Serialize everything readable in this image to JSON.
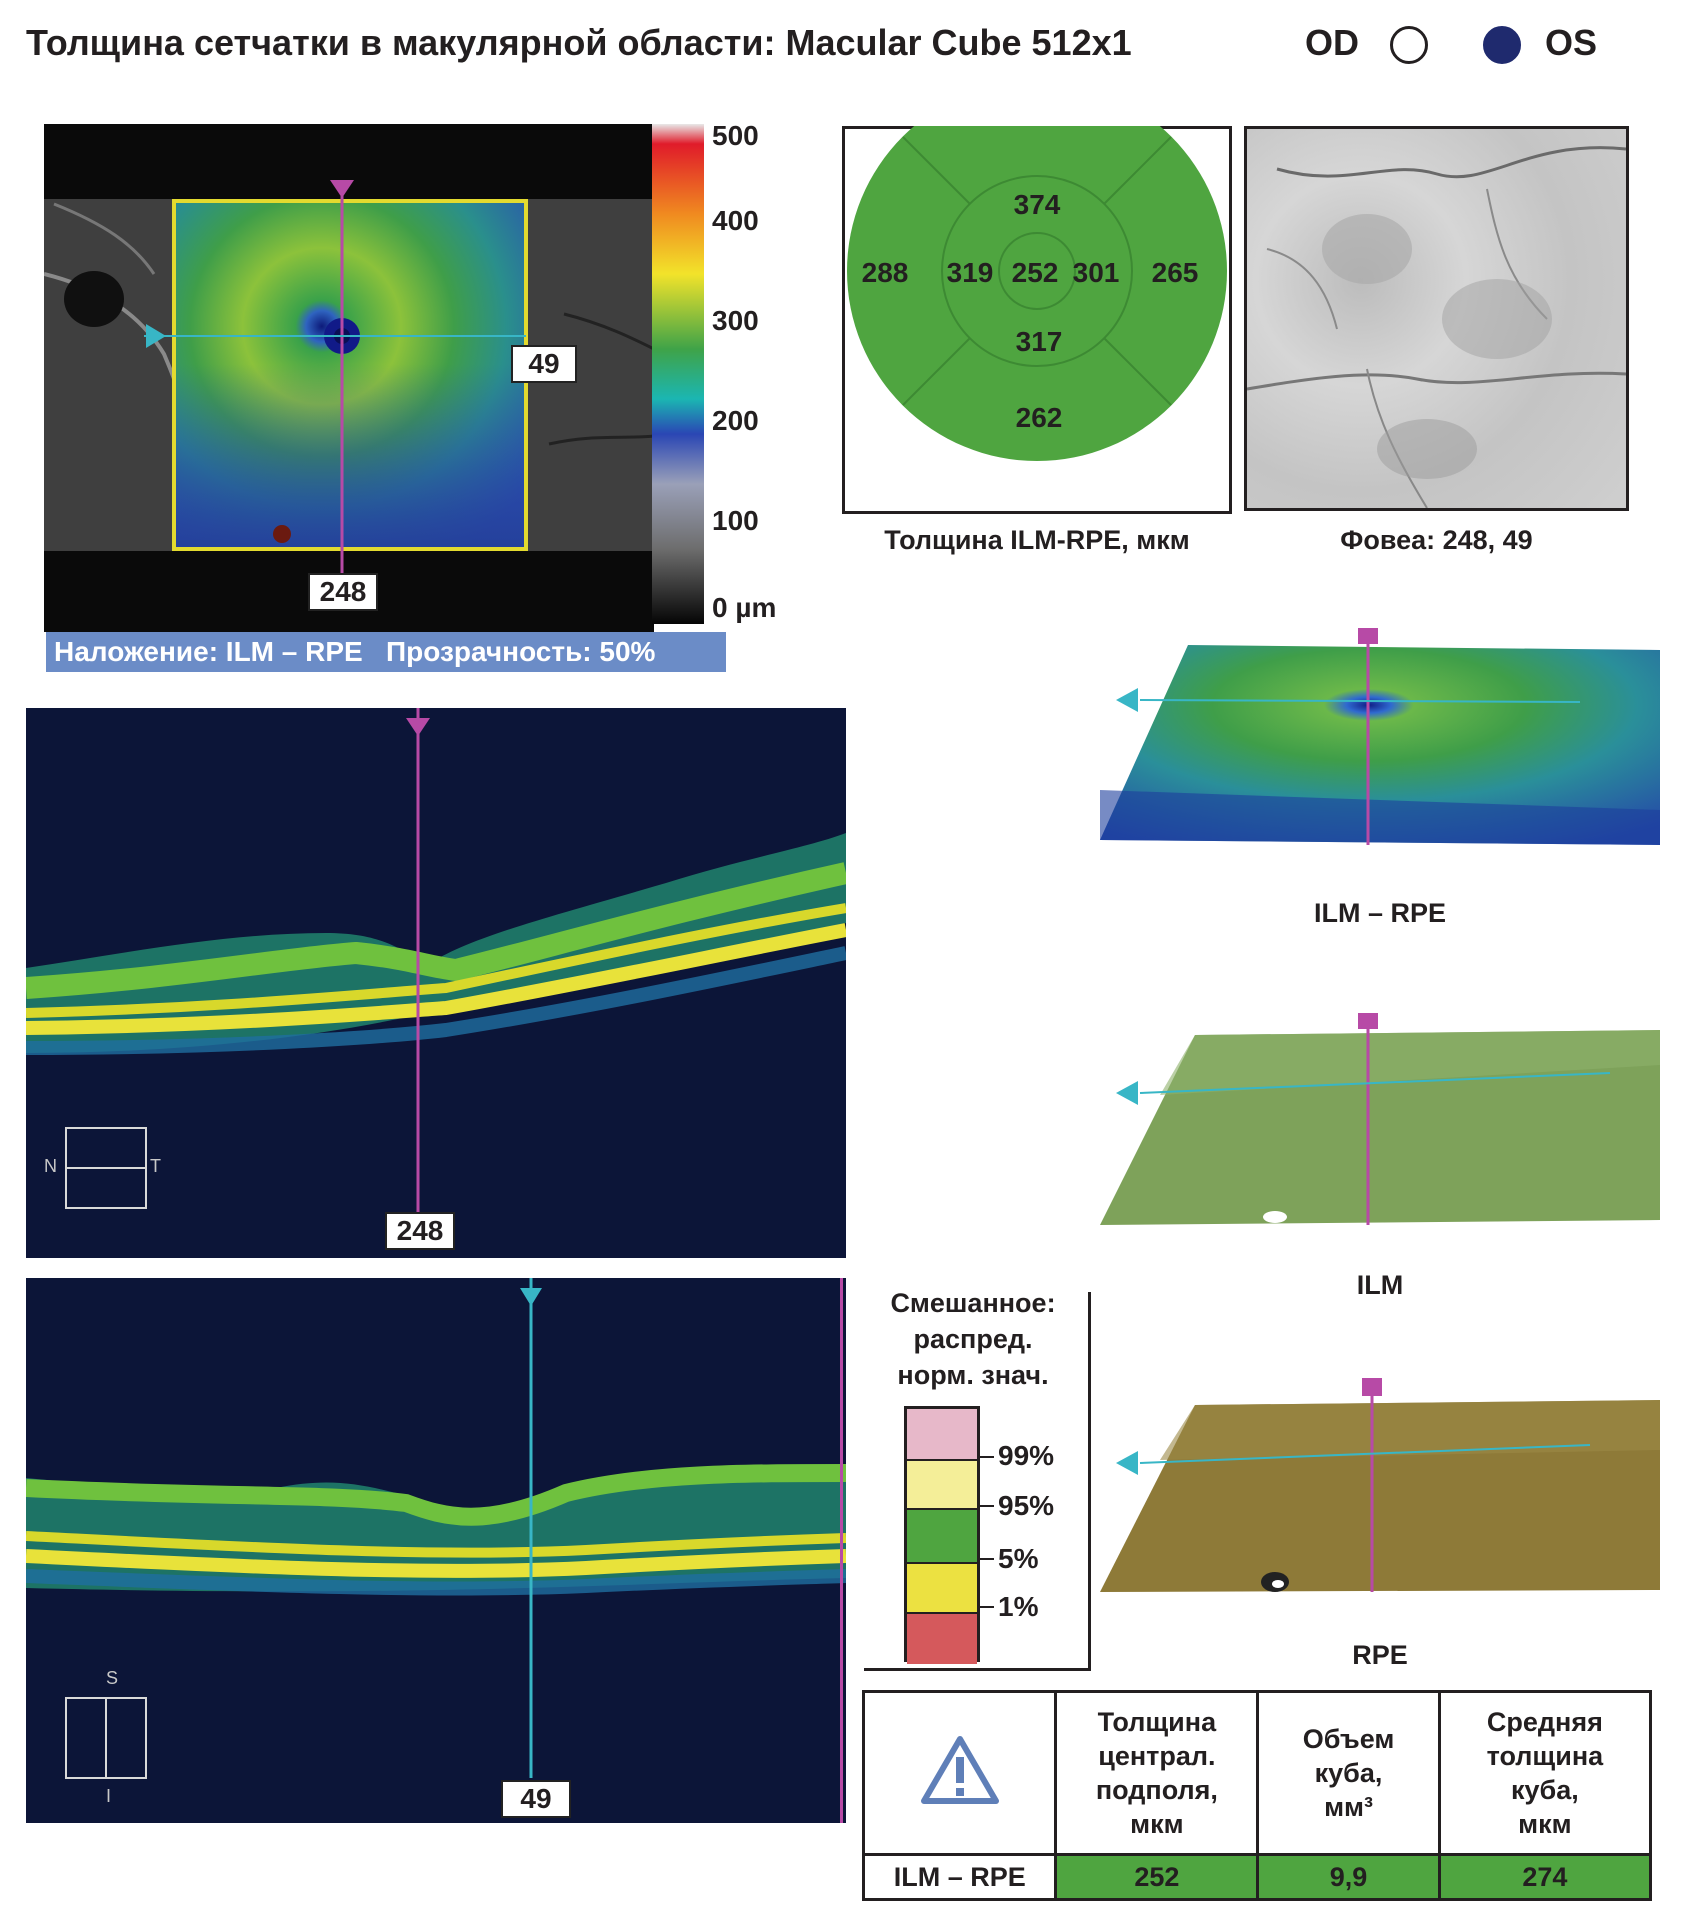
{
  "header": {
    "title": "Толщина сетчатки в макулярной области: Macular Cube 512x1",
    "od_label": "OD",
    "os_label": "OS"
  },
  "thickness_map": {
    "fovea_x": "248",
    "fovea_y": "49",
    "scale": [
      "500",
      "400",
      "300",
      "200",
      "100",
      "0 µm"
    ],
    "overlay_caption": "Наложение: ILM – RPE   Прозрачность: 50%"
  },
  "etdrs": {
    "superior_outer": "374",
    "nasal_outer": "288",
    "nasal_inner": "319",
    "center": "252",
    "temporal_inner": "301",
    "temporal_outer": "265",
    "inferior_inner": "317",
    "inferior_outer": "262",
    "caption": "Толщина ILM-RPE, мкм"
  },
  "fundus": {
    "caption": "Фовеа: 248, 49"
  },
  "bscans": {
    "horizontal_label": "248",
    "vertical_label": "49",
    "orient_n": "N",
    "orient_t": "T",
    "orient_s": "S",
    "orient_i": "I"
  },
  "surfaces": {
    "ilm_rpe": "ILM – RPE",
    "ilm": "ILM",
    "rpe": "RPE"
  },
  "legend": {
    "title_1": "Смешанное:",
    "title_2": "распред.",
    "title_3": "норм. знач.",
    "levels": [
      "99%",
      "95%",
      "5%",
      "1%"
    ],
    "colors": [
      "#e7b8c9",
      "#f4ee98",
      "#4fa540",
      "#ece141",
      "#d5595c"
    ]
  },
  "results_table": {
    "warning_icon": "warning-triangle-icon",
    "col1": [
      "Толщина",
      "централ.",
      "подполя,",
      "мкм"
    ],
    "col2": [
      "Объем",
      "куба,",
      "мм³"
    ],
    "col3": [
      "Средняя",
      "толщина",
      "куба,",
      "мкм"
    ],
    "row_label": "ILM – RPE",
    "csft": "252",
    "volume": "9,9",
    "avg": "274"
  }
}
